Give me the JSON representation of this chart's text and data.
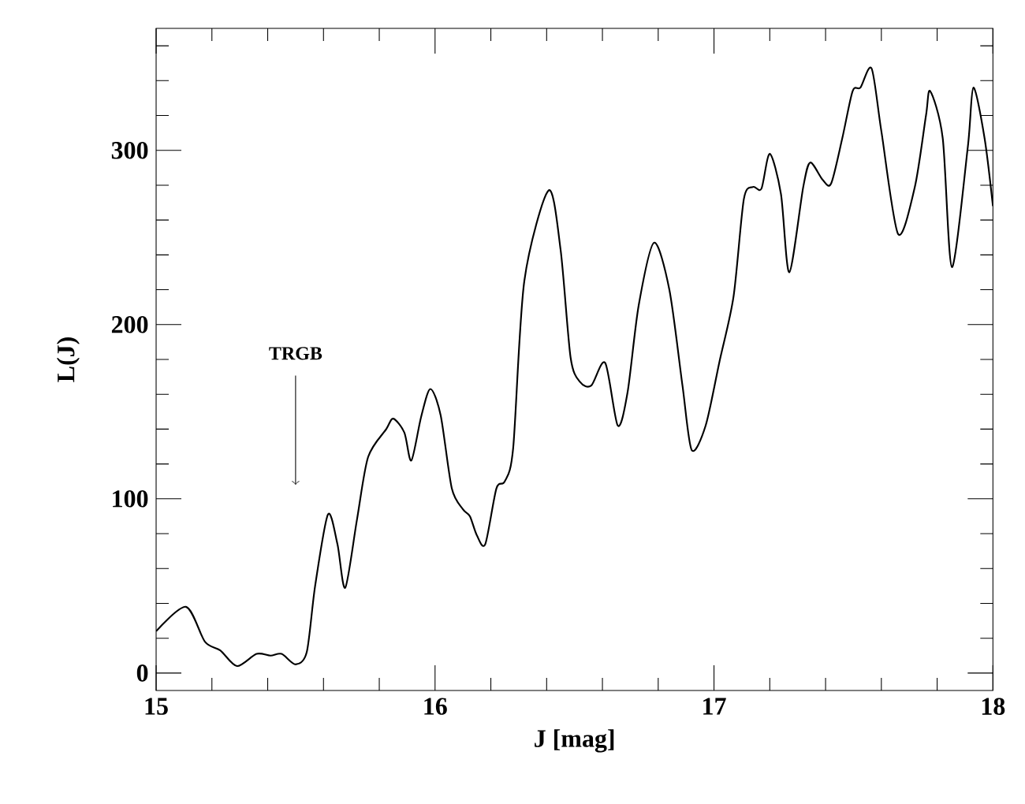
{
  "chart_data": {
    "type": "line",
    "xlabel": "J [mag]",
    "ylabel": "L(J)",
    "color": "#000000",
    "x": [
      15.0,
      15.107,
      15.175,
      15.23,
      15.29,
      15.36,
      15.41,
      15.45,
      15.5,
      15.54,
      15.57,
      15.616,
      15.65,
      15.678,
      15.72,
      15.76,
      15.825,
      15.85,
      15.89,
      15.915,
      15.95,
      15.983,
      16.02,
      16.06,
      16.1,
      16.125,
      16.15,
      16.18,
      16.22,
      16.25,
      16.28,
      16.32,
      16.407,
      16.45,
      16.486,
      16.52,
      16.56,
      16.61,
      16.655,
      16.69,
      16.73,
      16.785,
      16.84,
      16.887,
      16.92,
      16.97,
      17.02,
      17.07,
      17.107,
      17.14,
      17.17,
      17.2,
      17.24,
      17.27,
      17.32,
      17.345,
      17.39,
      17.42,
      17.46,
      17.497,
      17.525,
      17.565,
      17.6,
      17.66,
      17.72,
      17.76,
      17.775,
      17.82,
      17.853,
      17.91,
      17.93,
      17.97,
      18.0
    ],
    "values": [
      24,
      38,
      18,
      13,
      4,
      11,
      10,
      11,
      5,
      12,
      50,
      91,
      74,
      49,
      88,
      124,
      140,
      146,
      138,
      122,
      147,
      163,
      148,
      106,
      94,
      90,
      79,
      74,
      106,
      110,
      129,
      225,
      277,
      243,
      181,
      167,
      165,
      178,
      142,
      161,
      211,
      247,
      220,
      165,
      128,
      142,
      179,
      216,
      272,
      279,
      278,
      298,
      275,
      230,
      279,
      293,
      283,
      281,
      307,
      334,
      336,
      347,
      311,
      252,
      279,
      320,
      334,
      307,
      233,
      302,
      336,
      307,
      268
    ],
    "xlim": [
      15,
      18
    ],
    "ylim": [
      -10,
      370
    ],
    "xticks": [
      15,
      {
        "value": 15.2,
        "label": null
      },
      {
        "value": 15.4,
        "label": null
      },
      {
        "value": 15.6,
        "label": null
      },
      {
        "value": 15.8,
        "label": null
      },
      16,
      {
        "value": 16.2,
        "label": null
      },
      {
        "value": 16.4,
        "label": null
      },
      {
        "value": 16.6,
        "label": null
      },
      {
        "value": 16.8,
        "label": null
      },
      17,
      {
        "value": 17.2,
        "label": null
      },
      {
        "value": 17.4,
        "label": null
      },
      {
        "value": 17.6,
        "label": null
      },
      {
        "value": 17.8,
        "label": null
      },
      18
    ],
    "yticks": [
      0,
      {
        "value": 20,
        "label": null
      },
      {
        "value": 40,
        "label": null
      },
      {
        "value": 60,
        "label": null
      },
      {
        "value": 80,
        "label": null
      },
      100,
      {
        "value": 120,
        "label": null
      },
      {
        "value": 140,
        "label": null
      },
      {
        "value": 160,
        "label": null
      },
      {
        "value": 180,
        "label": null
      },
      200,
      {
        "value": 220,
        "label": null
      },
      {
        "value": 240,
        "label": null
      },
      {
        "value": 260,
        "label": null
      },
      {
        "value": 280,
        "label": null
      },
      300,
      {
        "value": 320,
        "label": null
      },
      {
        "value": 340,
        "label": null
      },
      {
        "value": 360,
        "label": null
      }
    ],
    "annotations": [
      {
        "text": "TRGB",
        "x": 15.5,
        "y": 108
      }
    ],
    "grid": false,
    "marker": "none",
    "line_style": "solid"
  }
}
